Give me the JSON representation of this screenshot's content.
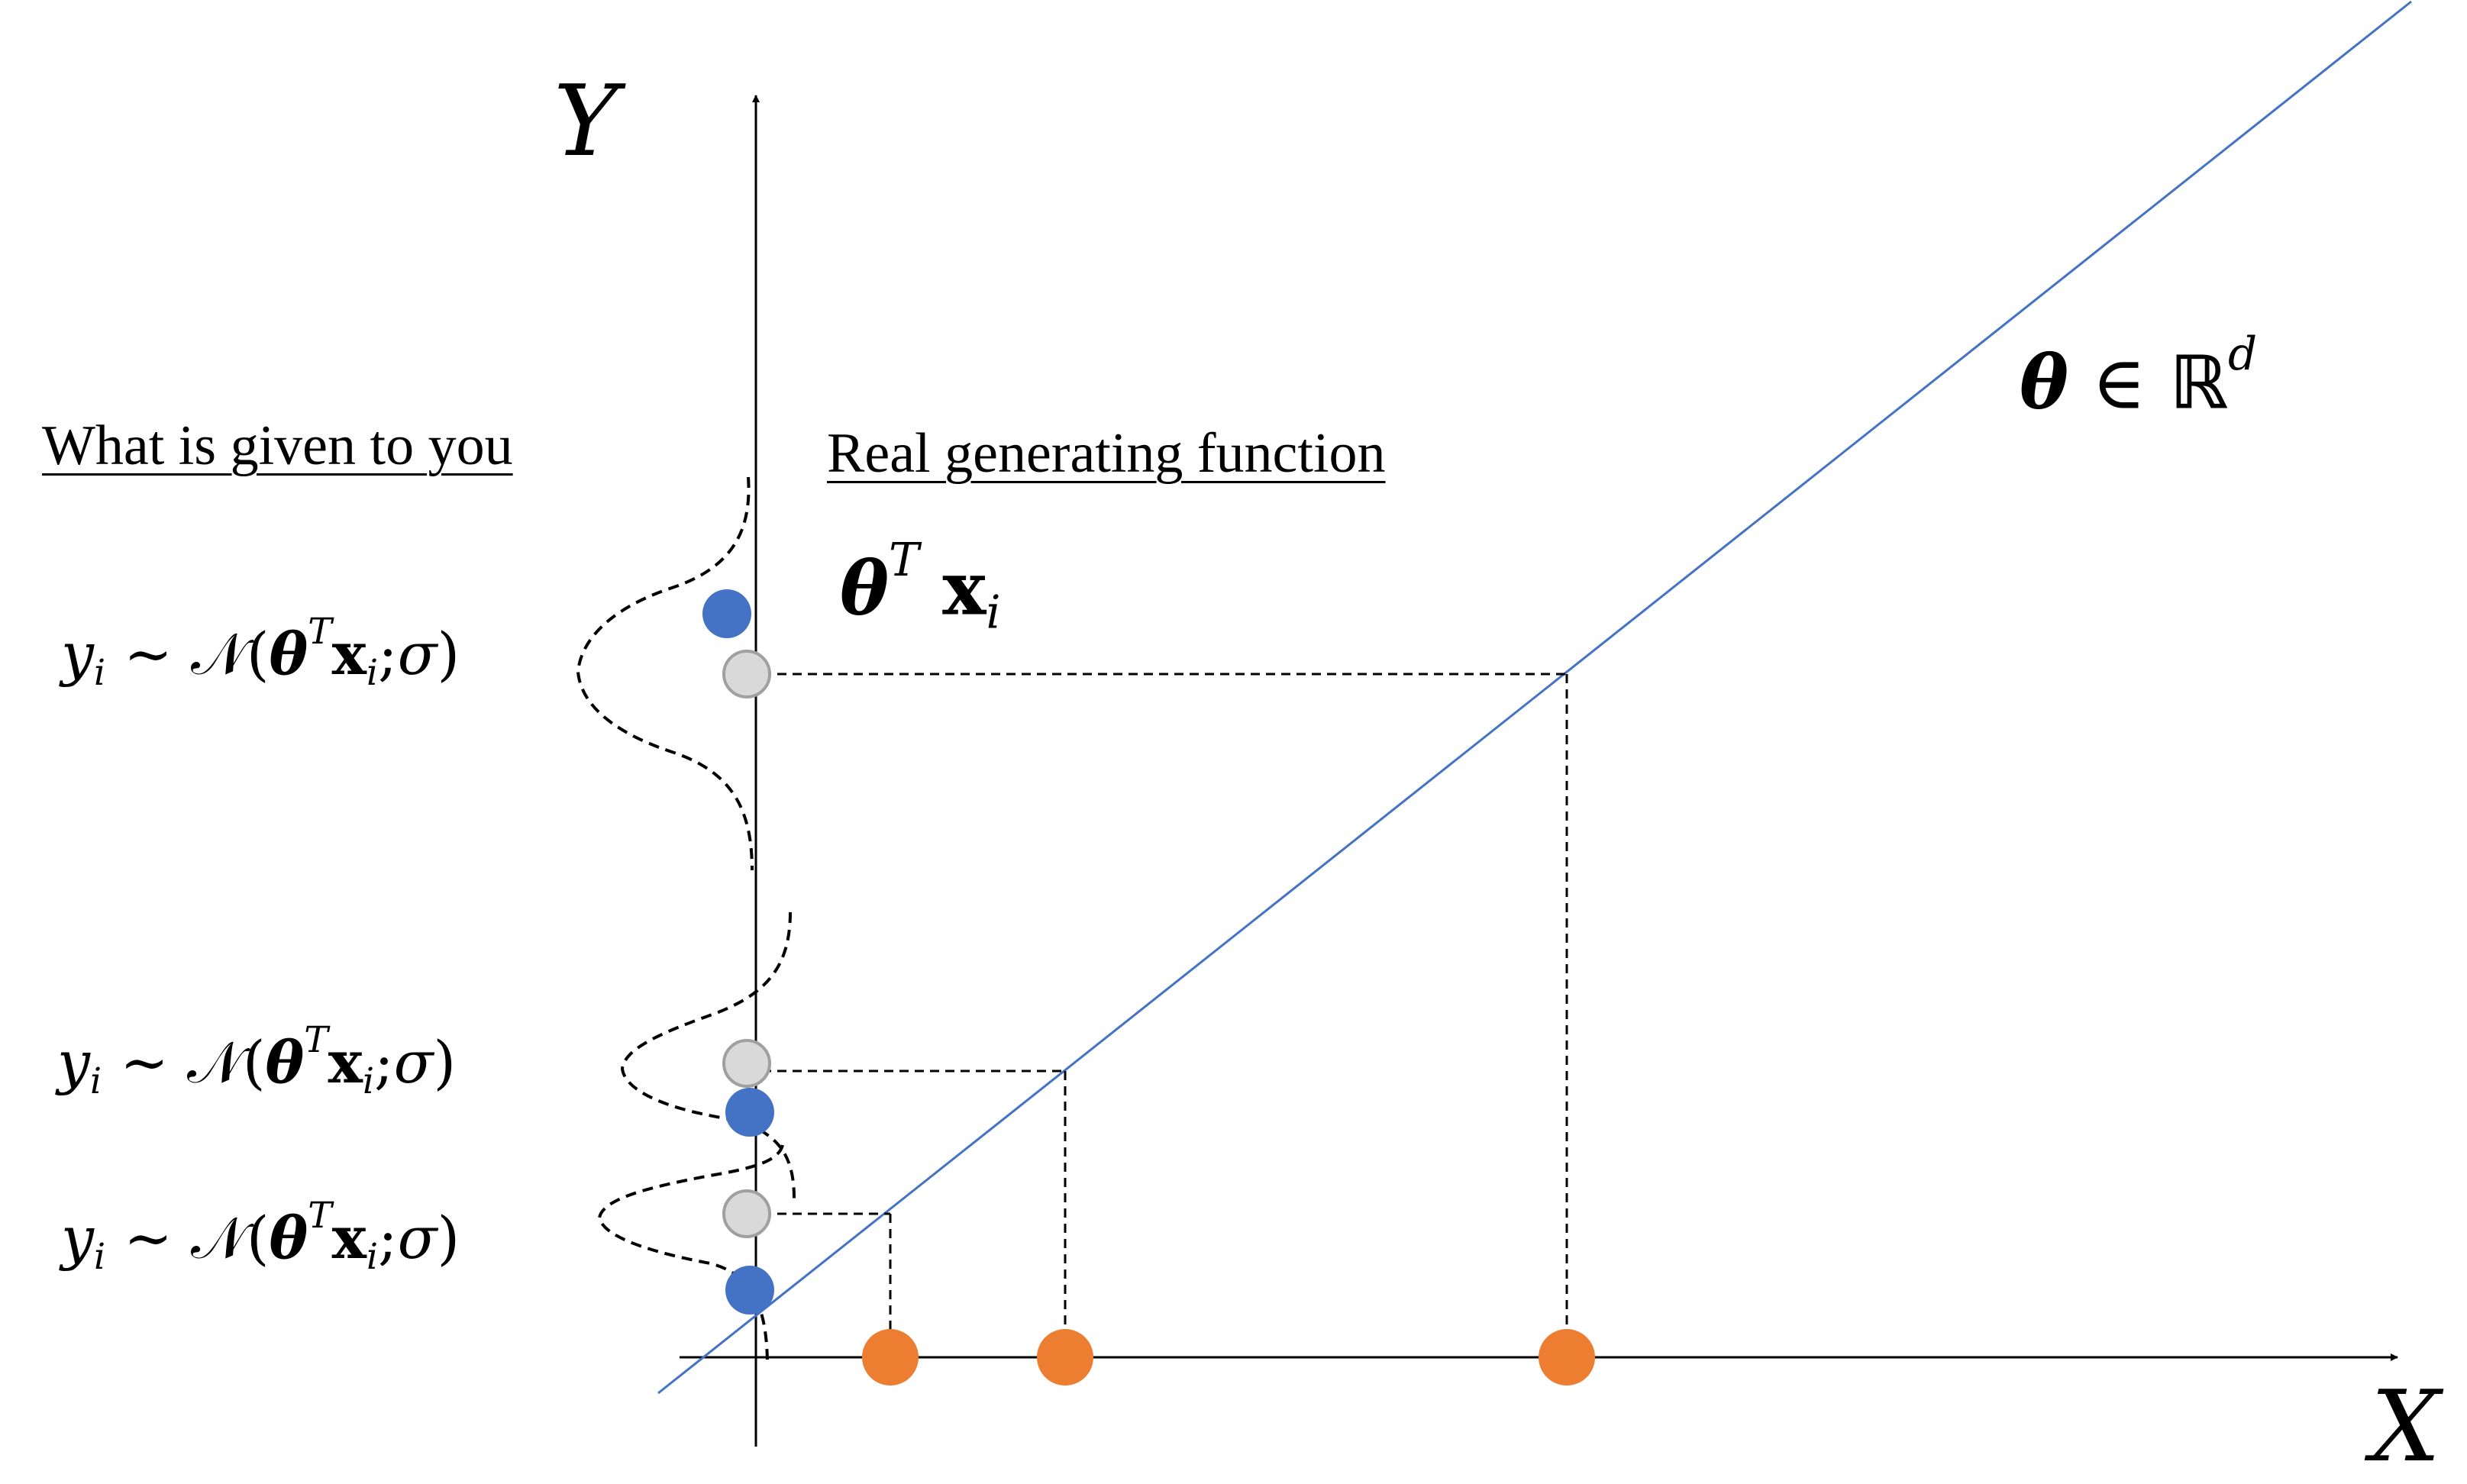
{
  "headings": {
    "given": "What is given to you",
    "real": "Real generating function"
  },
  "axes": {
    "x_label": "X",
    "y_label": "Y"
  },
  "math": {
    "theta_sym": "θ",
    "element_of": "∈",
    "reals": "ℝ",
    "dim": "d",
    "transpose": "T",
    "x_bold": "x",
    "sub_i": "i",
    "y_sym": "y",
    "sim": "∼",
    "normal": "𝒩",
    "open_paren": "(",
    "semicolon": ";",
    "sigma": "σ",
    "close_paren": ")"
  },
  "colors": {
    "line": "#4472c4",
    "observed_point": "#4472c4",
    "expected_point": "#d9d9d9",
    "input_point": "#ed7d31"
  }
}
